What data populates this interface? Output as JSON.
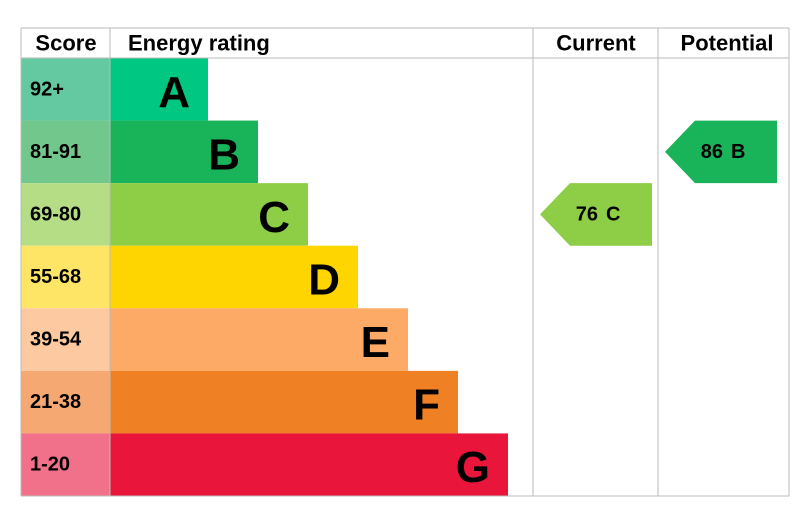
{
  "header": {
    "score": "Score",
    "rating": "Energy rating",
    "current": "Current",
    "potential": "Potential"
  },
  "bands": [
    {
      "score": "92+",
      "letter": "A",
      "color": "#00c781",
      "light": "#64c9a0"
    },
    {
      "score": "81-91",
      "letter": "B",
      "color": "#19b459",
      "light": "#72c88c"
    },
    {
      "score": "69-80",
      "letter": "C",
      "color": "#8dce46",
      "light": "#b5dd86"
    },
    {
      "score": "55-68",
      "letter": "D",
      "color": "#ffd500",
      "light": "#ffe566"
    },
    {
      "score": "39-54",
      "letter": "E",
      "color": "#fcaa65",
      "light": "#fdc9a0"
    },
    {
      "score": "21-38",
      "letter": "F",
      "color": "#ef8023",
      "light": "#f5a871"
    },
    {
      "score": "1-20",
      "letter": "G",
      "color": "#e9153b",
      "light": "#f2718a"
    }
  ],
  "current": {
    "score": 76,
    "letter": "C"
  },
  "potential": {
    "score": 86,
    "letter": "B"
  }
}
